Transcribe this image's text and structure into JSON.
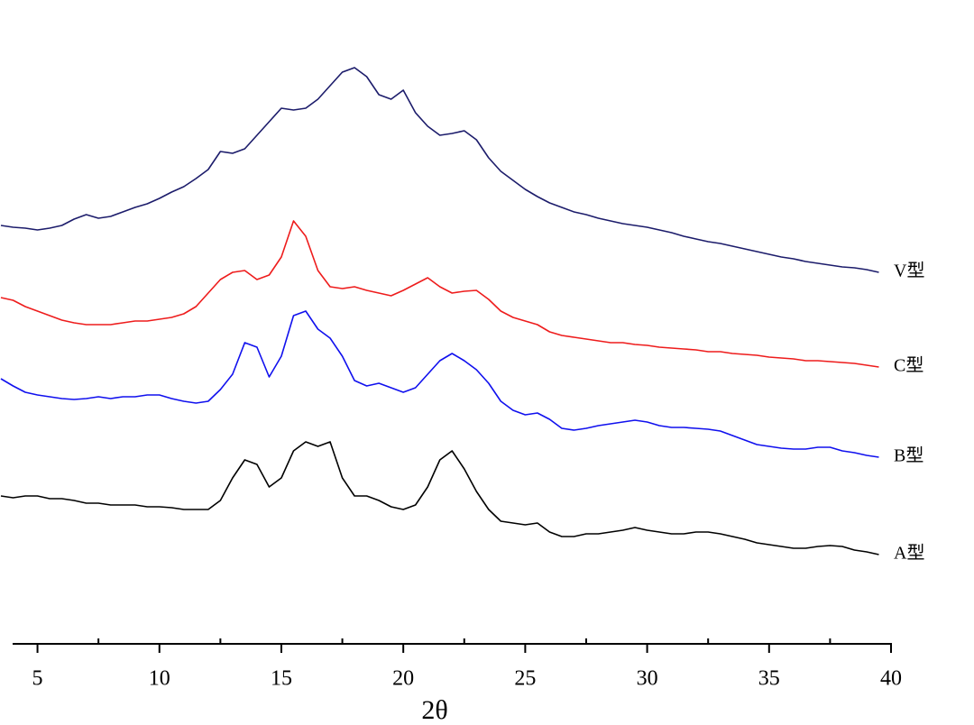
{
  "chart_data": {
    "type": "line",
    "x_label": "2θ",
    "x": [
      3.5,
      4,
      4.5,
      5,
      5.5,
      6,
      6.5,
      7,
      7.5,
      8,
      8.5,
      9,
      9.5,
      10,
      10.5,
      11,
      11.5,
      12,
      12.5,
      13,
      13.5,
      14,
      14.5,
      15,
      15.5,
      16,
      16.5,
      17,
      17.5,
      18,
      18.5,
      19,
      19.5,
      20,
      20.5,
      21,
      21.5,
      22,
      22.5,
      23,
      23.5,
      24,
      24.5,
      25,
      25.5,
      26,
      26.5,
      27,
      27.5,
      28,
      28.5,
      29,
      29.5,
      30,
      30.5,
      31,
      31.5,
      32,
      32.5,
      33,
      33.5,
      34,
      34.5,
      35,
      35.5,
      36,
      36.5,
      37,
      37.5,
      38,
      38.5,
      39,
      39.5
    ],
    "series": [
      {
        "name": "V型",
        "color": "#1c1c6b",
        "values": [
          490,
          488,
          487,
          485,
          487,
          490,
          497,
          502,
          498,
          500,
          505,
          510,
          514,
          520,
          527,
          533,
          542,
          552,
          572,
          570,
          575,
          590,
          605,
          620,
          618,
          620,
          630,
          645,
          660,
          665,
          655,
          635,
          630,
          640,
          615,
          600,
          590,
          592,
          595,
          585,
          565,
          550,
          540,
          530,
          522,
          515,
          510,
          505,
          502,
          498,
          495,
          492,
          490,
          488,
          485,
          482,
          478,
          475,
          472,
          470,
          467,
          464,
          461,
          458,
          455,
          453,
          450,
          448,
          446,
          444,
          443,
          441,
          438
        ]
      },
      {
        "name": "C型",
        "color": "#ee1c1c",
        "values": [
          410,
          407,
          400,
          395,
          390,
          385,
          382,
          380,
          380,
          380,
          382,
          384,
          384,
          386,
          388,
          392,
          400,
          415,
          430,
          438,
          440,
          430,
          435,
          455,
          495,
          478,
          440,
          422,
          420,
          422,
          418,
          415,
          412,
          418,
          425,
          432,
          422,
          415,
          417,
          418,
          408,
          395,
          388,
          384,
          380,
          372,
          368,
          366,
          364,
          362,
          360,
          360,
          358,
          357,
          355,
          354,
          353,
          352,
          350,
          350,
          348,
          347,
          346,
          344,
          343,
          342,
          340,
          340,
          339,
          338,
          337,
          335,
          333
        ]
      },
      {
        "name": "B型",
        "color": "#1010ee",
        "values": [
          320,
          312,
          305,
          302,
          300,
          298,
          297,
          298,
          300,
          298,
          300,
          300,
          302,
          302,
          298,
          295,
          293,
          295,
          308,
          325,
          360,
          355,
          322,
          345,
          390,
          395,
          375,
          365,
          345,
          318,
          312,
          315,
          310,
          305,
          310,
          325,
          340,
          348,
          340,
          330,
          315,
          295,
          285,
          280,
          282,
          275,
          265,
          263,
          265,
          268,
          270,
          272,
          274,
          272,
          268,
          266,
          266,
          265,
          264,
          262,
          257,
          252,
          247,
          245,
          243,
          242,
          242,
          244,
          244,
          240,
          238,
          235,
          233
        ]
      },
      {
        "name": "A型",
        "color": "#000000",
        "values": [
          190,
          188,
          190,
          190,
          187,
          187,
          185,
          182,
          182,
          180,
          180,
          180,
          178,
          178,
          177,
          175,
          175,
          175,
          185,
          210,
          230,
          225,
          200,
          210,
          240,
          250,
          245,
          250,
          210,
          190,
          190,
          185,
          178,
          175,
          180,
          200,
          230,
          240,
          220,
          195,
          175,
          162,
          160,
          158,
          160,
          150,
          145,
          145,
          148,
          148,
          150,
          152,
          155,
          152,
          150,
          148,
          148,
          150,
          150,
          148,
          145,
          142,
          138,
          136,
          134,
          132,
          132,
          134,
          135,
          134,
          130,
          128,
          125
        ]
      }
    ],
    "xlim": [
      3.5,
      40
    ],
    "xticks": [
      5,
      10,
      15,
      20,
      25,
      30,
      35,
      40
    ],
    "xminorticks": [
      7.5,
      12.5,
      17.5,
      22.5,
      27.5,
      32.5,
      37.5
    ],
    "ylim": [
      0,
      700
    ]
  }
}
